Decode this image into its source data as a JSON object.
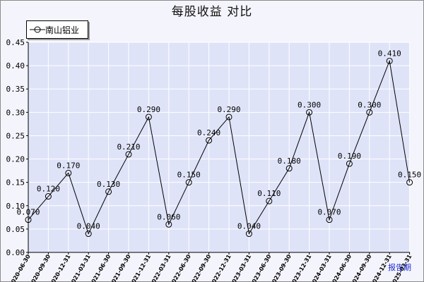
{
  "chart_data": {
    "type": "line",
    "title": "每股收益  对比",
    "xlabel": "报告期",
    "ylabel": "",
    "ylim": [
      0,
      0.45
    ],
    "yticks": [
      "0.00",
      "0.05",
      "0.10",
      "0.15",
      "0.20",
      "0.25",
      "0.30",
      "0.35",
      "0.40",
      "0.45"
    ],
    "grid": true,
    "legend_position": "top-left",
    "categories": [
      "2020-06-30",
      "2020-09-30",
      "2020-12-31",
      "2021-03-31",
      "2021-06-30",
      "2021-09-30",
      "2021-12-31",
      "2022-03-31",
      "2022-06-30",
      "2022-09-30",
      "2022-12-31",
      "2023-03-31",
      "2023-06-30",
      "2023-09-30",
      "2023-12-31",
      "2024-03-31",
      "2024-06-30",
      "2024-09-30",
      "2024-12-31",
      "2025-03-31"
    ],
    "series": [
      {
        "name": "南山铝业",
        "values": [
          0.07,
          0.12,
          0.17,
          0.04,
          0.13,
          0.21,
          0.29,
          0.06,
          0.15,
          0.24,
          0.29,
          0.04,
          0.11,
          0.18,
          0.3,
          0.07,
          0.19,
          0.3,
          0.41,
          0.15
        ],
        "labels": [
          "0.070",
          "0.120",
          "0.170",
          "0.040",
          "0.130",
          "0.210",
          "0.290",
          "0.060",
          "0.150",
          "0.240",
          "0.290",
          "0.040",
          "0.110",
          "0.180",
          "0.300",
          "0.070",
          "0.190",
          "0.300",
          "0.410",
          "0.150"
        ]
      }
    ],
    "colors": {
      "plot_background": "#dfe3f8",
      "frame_background": "#f4f4fc",
      "grid": "#ffffff",
      "line": "#000000",
      "marker": "#000000",
      "xunit": "#1a2bd0"
    },
    "marker": "circle-open"
  }
}
